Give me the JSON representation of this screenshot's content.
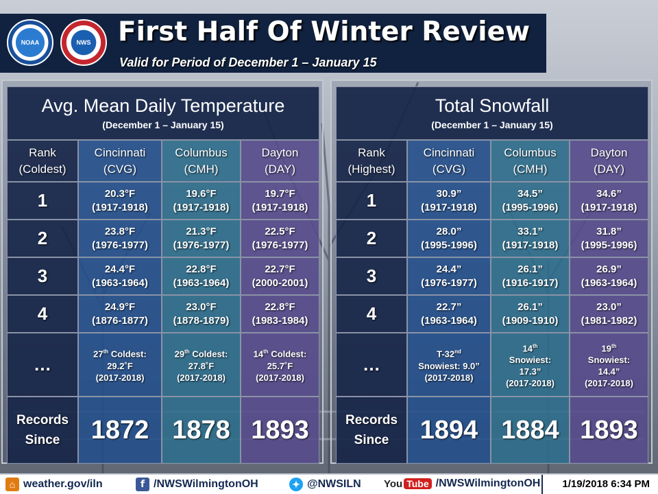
{
  "header": {
    "title": "First Half Of Winter Review",
    "subtitle": "Valid for Period of December 1 – January 15",
    "logos": [
      {
        "name": "noaa-logo",
        "text": "NOAA"
      },
      {
        "name": "nws-logo",
        "text": "NWS"
      }
    ]
  },
  "temp_panel": {
    "title": "Avg. Mean Daily Temperature",
    "period": "(December 1 – January 15)",
    "rank_header": [
      "Rank",
      "(Coldest)"
    ],
    "columns": [
      {
        "city": "Cincinnati",
        "code": "(CVG)"
      },
      {
        "city": "Columbus",
        "code": "(CMH)"
      },
      {
        "city": "Dayton",
        "code": "(DAY)"
      }
    ],
    "rows": [
      {
        "rank": "1",
        "cells": [
          [
            "20.3°F",
            "(1917-1918)"
          ],
          [
            "19.6°F",
            "(1917-1918)"
          ],
          [
            "19.7°F",
            "(1917-1918)"
          ]
        ]
      },
      {
        "rank": "2",
        "cells": [
          [
            "23.8°F",
            "(1976-1977)"
          ],
          [
            "21.3°F",
            "(1976-1977)"
          ],
          [
            "22.5°F",
            "(1976-1977)"
          ]
        ]
      },
      {
        "rank": "3",
        "cells": [
          [
            "24.4°F",
            "(1963-1964)"
          ],
          [
            "22.8°F",
            "(1963-1964)"
          ],
          [
            "22.7°F",
            "(2000-2001)"
          ]
        ]
      },
      {
        "rank": "4",
        "cells": [
          [
            "24.9°F",
            "(1876-1877)"
          ],
          [
            "23.0°F",
            "(1878-1879)"
          ],
          [
            "22.8°F",
            "(1983-1984)"
          ]
        ]
      }
    ],
    "current_label": "…",
    "current": [
      {
        "ord": "27",
        "sup": "th",
        "text": "Coldest:",
        "value": "29.2˚F",
        "season": "(2017-2018)"
      },
      {
        "ord": "29",
        "sup": "th",
        "text": "Coldest:",
        "value": "27.8˚F",
        "season": "(2017-2018)"
      },
      {
        "ord": "14",
        "sup": "th",
        "text": "Coldest:",
        "value": "25.7˚F",
        "season": "(2017-2018)"
      }
    ],
    "records_label": [
      "Records",
      "Since"
    ],
    "records": [
      "1872",
      "1878",
      "1893"
    ]
  },
  "snow_panel": {
    "title": "Total Snowfall",
    "period": "(December 1 – January 15)",
    "rank_header": [
      "Rank",
      "(Highest)"
    ],
    "columns": [
      {
        "city": "Cincinnati",
        "code": "(CVG)"
      },
      {
        "city": "Columbus",
        "code": "(CMH)"
      },
      {
        "city": "Dayton",
        "code": "(DAY)"
      }
    ],
    "rows": [
      {
        "rank": "1",
        "cells": [
          [
            "30.9”",
            "(1917-1918)"
          ],
          [
            "34.5”",
            "(1995-1996)"
          ],
          [
            "34.6”",
            "(1917-1918)"
          ]
        ]
      },
      {
        "rank": "2",
        "cells": [
          [
            "28.0”",
            "(1995-1996)"
          ],
          [
            "33.1”",
            "(1917-1918)"
          ],
          [
            "31.8”",
            "(1995-1996)"
          ]
        ]
      },
      {
        "rank": "3",
        "cells": [
          [
            "24.4”",
            "(1976-1977)"
          ],
          [
            "26.1”",
            "(1916-1917)"
          ],
          [
            "26.9”",
            "(1963-1964)"
          ]
        ]
      },
      {
        "rank": "4",
        "cells": [
          [
            "22.7”",
            "(1963-1964)"
          ],
          [
            "26.1”",
            "(1909-1910)"
          ],
          [
            "23.0”",
            "(1981-1982)"
          ]
        ]
      }
    ],
    "current_label": "…",
    "current": [
      {
        "pre": "T-32",
        "sup": "nd",
        "text": "Snowiest: 9.0”",
        "season": "(2017-2018)"
      },
      {
        "pre": "14",
        "sup": "th",
        "text": "Snowiest:",
        "value": "17.3”",
        "season": "(2017-2018)"
      },
      {
        "pre": "19",
        "sup": "th",
        "text": "Snowiest:",
        "value": "14.4”",
        "season": "(2017-2018)"
      }
    ],
    "records_label": [
      "Records",
      "Since"
    ],
    "records": [
      "1894",
      "1884",
      "1893"
    ]
  },
  "footer": {
    "website": "weather.gov/iln",
    "facebook": "/NWSWilmingtonOH",
    "twitter": "@NWSILN",
    "youtube_you": "You",
    "youtube_tube": "Tube",
    "youtube": "/NWSWilmingtonOH",
    "timestamp": "1/19/2018 6:34 PM",
    "icons": [
      "home-icon",
      "facebook-icon",
      "twitter-icon",
      "youtube-icon"
    ]
  }
}
